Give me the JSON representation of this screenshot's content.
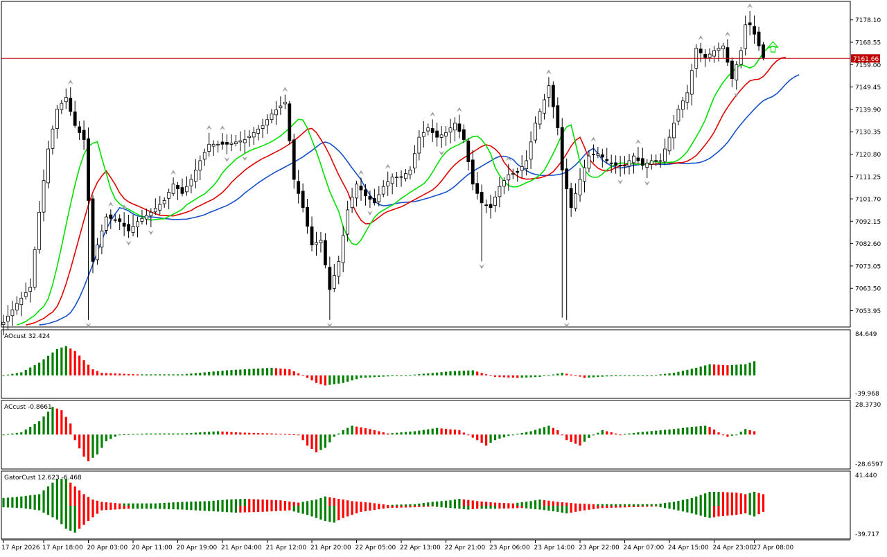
{
  "colors": {
    "background": "#ffffff",
    "frame": "#000000",
    "bull_candle": "#ffffff",
    "bear_candle": "#000000",
    "alligator_jaw": "#1450c8",
    "alligator_teeth": "#e00000",
    "alligator_lips": "#00e000",
    "price_line": "#c00000",
    "price_tag_bg": "#c00000",
    "histogram_up": "#008000",
    "histogram_down": "#ff0000",
    "fractal_marker": "#a0a0a0"
  },
  "main_panel": {
    "current_price": "7161.66",
    "current_price_value": 7161.66,
    "ylim": [
      7047,
      7186
    ],
    "y_ticks": [
      "7178.10",
      "7168.55",
      "7159.00",
      "7149.45",
      "7139.90",
      "7130.35",
      "7120.80",
      "7111.25",
      "7101.70",
      "7092.15",
      "7082.60",
      "7073.05",
      "7063.50",
      "7053.95"
    ]
  },
  "ao_panel": {
    "label": "AOcust 32.424",
    "ylim": [
      -39.968,
      84.649
    ],
    "top_label": "84.649",
    "bottom_label": "-39.968"
  },
  "ac_panel": {
    "label": "ACcust -0.8661",
    "ylim": [
      -28.6597,
      28.373
    ],
    "top_label": "28.3730",
    "bottom_label": "-28.6597"
  },
  "gator_panel": {
    "label": "GatorCust 12.623 -6.468",
    "ylim": [
      -39.717,
      41.44
    ],
    "top_label": "41.440",
    "bottom_label": "-39.717"
  },
  "x_ticks": [
    "17 Apr 2026",
    "17 Apr 18:00",
    "20 Apr 03:00",
    "20 Apr 11:00",
    "20 Apr 19:00",
    "21 Apr 04:00",
    "21 Apr 12:00",
    "21 Apr 20:00",
    "22 Apr 05:00",
    "22 Apr 13:00",
    "22 Apr 21:00",
    "23 Apr 06:00",
    "23 Apr 14:00",
    "23 Apr 22:00",
    "24 Apr 07:00",
    "24 Apr 15:00",
    "24 Apr 23:00",
    "27 Apr 08:00"
  ],
  "chart_data": {
    "type": "candlestick",
    "close_anchors": [
      [
        0,
        7049
      ],
      [
        3,
        7057
      ],
      [
        6,
        7064
      ],
      [
        8,
        7096
      ],
      [
        10,
        7123
      ],
      [
        12,
        7140
      ],
      [
        14,
        7145
      ],
      [
        16,
        7133
      ],
      [
        18,
        7127
      ],
      [
        20,
        7075
      ],
      [
        21,
        7082
      ],
      [
        23,
        7094
      ],
      [
        26,
        7092
      ],
      [
        28,
        7088
      ],
      [
        30,
        7092
      ],
      [
        33,
        7096
      ],
      [
        36,
        7101
      ],
      [
        38,
        7108
      ],
      [
        40,
        7104
      ],
      [
        42,
        7110
      ],
      [
        44,
        7118
      ],
      [
        46,
        7125
      ],
      [
        50,
        7125
      ],
      [
        54,
        7127
      ],
      [
        58,
        7133
      ],
      [
        60,
        7138
      ],
      [
        63,
        7143
      ],
      [
        65,
        7110
      ],
      [
        67,
        7098
      ],
      [
        69,
        7082
      ],
      [
        71,
        7084
      ],
      [
        73,
        7063
      ],
      [
        75,
        7075
      ],
      [
        77,
        7097
      ],
      [
        79,
        7108
      ],
      [
        81,
        7103
      ],
      [
        83,
        7100
      ],
      [
        85,
        7107
      ],
      [
        87,
        7111
      ],
      [
        89,
        7111
      ],
      [
        91,
        7114
      ],
      [
        93,
        7128
      ],
      [
        95,
        7132
      ],
      [
        97,
        7128
      ],
      [
        99,
        7130
      ],
      [
        101,
        7134
      ],
      [
        103,
        7127
      ],
      [
        105,
        7108
      ],
      [
        107,
        7100
      ],
      [
        109,
        7098
      ],
      [
        111,
        7107
      ],
      [
        113,
        7112
      ],
      [
        115,
        7113
      ],
      [
        117,
        7118
      ],
      [
        119,
        7134
      ],
      [
        121,
        7144
      ],
      [
        122,
        7150
      ],
      [
        124,
        7132
      ],
      [
        125,
        7114
      ],
      [
        127,
        7098
      ],
      [
        129,
        7110
      ],
      [
        131,
        7120
      ],
      [
        133,
        7121
      ],
      [
        135,
        7118
      ],
      [
        137,
        7116
      ],
      [
        139,
        7116
      ],
      [
        141,
        7120
      ],
      [
        143,
        7116
      ],
      [
        145,
        7118
      ],
      [
        147,
        7118
      ],
      [
        149,
        7128
      ],
      [
        151,
        7140
      ],
      [
        153,
        7147
      ],
      [
        155,
        7166
      ],
      [
        157,
        7162
      ],
      [
        159,
        7165
      ],
      [
        161,
        7167
      ],
      [
        163,
        7153
      ],
      [
        165,
        7165
      ],
      [
        166,
        7176
      ],
      [
        167,
        7176
      ],
      [
        168,
        7172
      ],
      [
        170,
        7162
      ]
    ],
    "ao_anchors": [
      [
        0,
        0
      ],
      [
        4,
        6
      ],
      [
        8,
        25
      ],
      [
        12,
        52
      ],
      [
        14,
        58
      ],
      [
        16,
        48
      ],
      [
        18,
        30
      ],
      [
        20,
        12
      ],
      [
        22,
        5
      ],
      [
        30,
        2
      ],
      [
        40,
        2
      ],
      [
        50,
        10
      ],
      [
        60,
        15
      ],
      [
        64,
        12
      ],
      [
        67,
        0
      ],
      [
        70,
        -15
      ],
      [
        72,
        -20
      ],
      [
        76,
        -15
      ],
      [
        80,
        -5
      ],
      [
        90,
        0
      ],
      [
        100,
        8
      ],
      [
        105,
        10
      ],
      [
        110,
        -3
      ],
      [
        115,
        -5
      ],
      [
        120,
        -3
      ],
      [
        125,
        5
      ],
      [
        128,
        0
      ],
      [
        130,
        -5
      ],
      [
        135,
        -2
      ],
      [
        145,
        0
      ],
      [
        150,
        5
      ],
      [
        155,
        15
      ],
      [
        158,
        22
      ],
      [
        162,
        20
      ],
      [
        166,
        22
      ],
      [
        168,
        28
      ],
      [
        170,
        25
      ]
    ],
    "ac_anchors": [
      [
        0,
        0
      ],
      [
        4,
        2
      ],
      [
        8,
        12
      ],
      [
        11,
        25
      ],
      [
        13,
        22
      ],
      [
        15,
        10
      ],
      [
        16,
        -5
      ],
      [
        18,
        -20
      ],
      [
        19,
        -24
      ],
      [
        21,
        -18
      ],
      [
        23,
        -6
      ],
      [
        26,
        0
      ],
      [
        32,
        1
      ],
      [
        40,
        1
      ],
      [
        48,
        3
      ],
      [
        52,
        2
      ],
      [
        60,
        1
      ],
      [
        66,
        0
      ],
      [
        68,
        -10
      ],
      [
        70,
        -16
      ],
      [
        72,
        -12
      ],
      [
        74,
        -2
      ],
      [
        76,
        4
      ],
      [
        78,
        8
      ],
      [
        82,
        5
      ],
      [
        86,
        1
      ],
      [
        92,
        3
      ],
      [
        97,
        6
      ],
      [
        102,
        4
      ],
      [
        106,
        -5
      ],
      [
        108,
        -10
      ],
      [
        110,
        -5
      ],
      [
        114,
        0
      ],
      [
        118,
        3
      ],
      [
        122,
        8
      ],
      [
        124,
        4
      ],
      [
        126,
        -5
      ],
      [
        129,
        -10
      ],
      [
        131,
        -3
      ],
      [
        134,
        4
      ],
      [
        138,
        0
      ],
      [
        142,
        2
      ],
      [
        150,
        5
      ],
      [
        154,
        7
      ],
      [
        157,
        8
      ],
      [
        158,
        7
      ],
      [
        160,
        2
      ],
      [
        162,
        -2
      ],
      [
        164,
        0
      ],
      [
        166,
        5
      ],
      [
        168,
        3
      ],
      [
        170,
        0
      ]
    ],
    "gator_upper_anchors": [
      [
        0,
        10
      ],
      [
        4,
        12
      ],
      [
        8,
        15
      ],
      [
        10,
        25
      ],
      [
        12,
        35
      ],
      [
        14,
        35
      ],
      [
        16,
        25
      ],
      [
        18,
        15
      ],
      [
        20,
        8
      ],
      [
        22,
        5
      ],
      [
        26,
        3
      ],
      [
        34,
        3
      ],
      [
        40,
        5
      ],
      [
        46,
        6
      ],
      [
        50,
        8
      ],
      [
        54,
        9
      ],
      [
        62,
        7
      ],
      [
        66,
        4
      ],
      [
        70,
        8
      ],
      [
        72,
        12
      ],
      [
        74,
        10
      ],
      [
        78,
        6
      ],
      [
        82,
        4
      ],
      [
        86,
        1
      ],
      [
        92,
        2
      ],
      [
        96,
        5
      ],
      [
        100,
        7
      ],
      [
        102,
        9
      ],
      [
        106,
        6
      ],
      [
        110,
        4
      ],
      [
        114,
        3
      ],
      [
        118,
        6
      ],
      [
        120,
        8
      ],
      [
        124,
        5
      ],
      [
        128,
        3
      ],
      [
        132,
        2
      ],
      [
        140,
        2
      ],
      [
        146,
        2
      ],
      [
        150,
        5
      ],
      [
        154,
        10
      ],
      [
        158,
        18
      ],
      [
        160,
        18
      ],
      [
        164,
        17
      ],
      [
        166,
        15
      ],
      [
        168,
        18
      ],
      [
        170,
        15
      ]
    ],
    "gator_lower_anchors": [
      [
        0,
        -2
      ],
      [
        4,
        -3
      ],
      [
        8,
        -6
      ],
      [
        12,
        -18
      ],
      [
        14,
        -30
      ],
      [
        16,
        -35
      ],
      [
        18,
        -25
      ],
      [
        20,
        -15
      ],
      [
        22,
        -6
      ],
      [
        28,
        -4
      ],
      [
        34,
        -4
      ],
      [
        40,
        -5
      ],
      [
        46,
        -7
      ],
      [
        52,
        -9
      ],
      [
        58,
        -8
      ],
      [
        64,
        -6
      ],
      [
        68,
        -12
      ],
      [
        72,
        -20
      ],
      [
        74,
        -22
      ],
      [
        76,
        -16
      ],
      [
        80,
        -8
      ],
      [
        86,
        -3
      ],
      [
        92,
        -2
      ],
      [
        96,
        -1
      ],
      [
        100,
        -3
      ],
      [
        104,
        -5
      ],
      [
        106,
        -4
      ],
      [
        110,
        -4
      ],
      [
        116,
        -3
      ],
      [
        120,
        -5
      ],
      [
        124,
        -8
      ],
      [
        126,
        -10
      ],
      [
        130,
        -6
      ],
      [
        134,
        -3
      ],
      [
        140,
        -2
      ],
      [
        146,
        -1
      ],
      [
        150,
        -5
      ],
      [
        154,
        -10
      ],
      [
        158,
        -16
      ],
      [
        160,
        -14
      ],
      [
        164,
        -12
      ],
      [
        166,
        -10
      ],
      [
        168,
        -14
      ],
      [
        170,
        -8
      ]
    ],
    "x_tick_candles": [
      0,
      9,
      19,
      29,
      39,
      49,
      59,
      69,
      79,
      89,
      99,
      109,
      119,
      129,
      139,
      149,
      159,
      168
    ]
  }
}
